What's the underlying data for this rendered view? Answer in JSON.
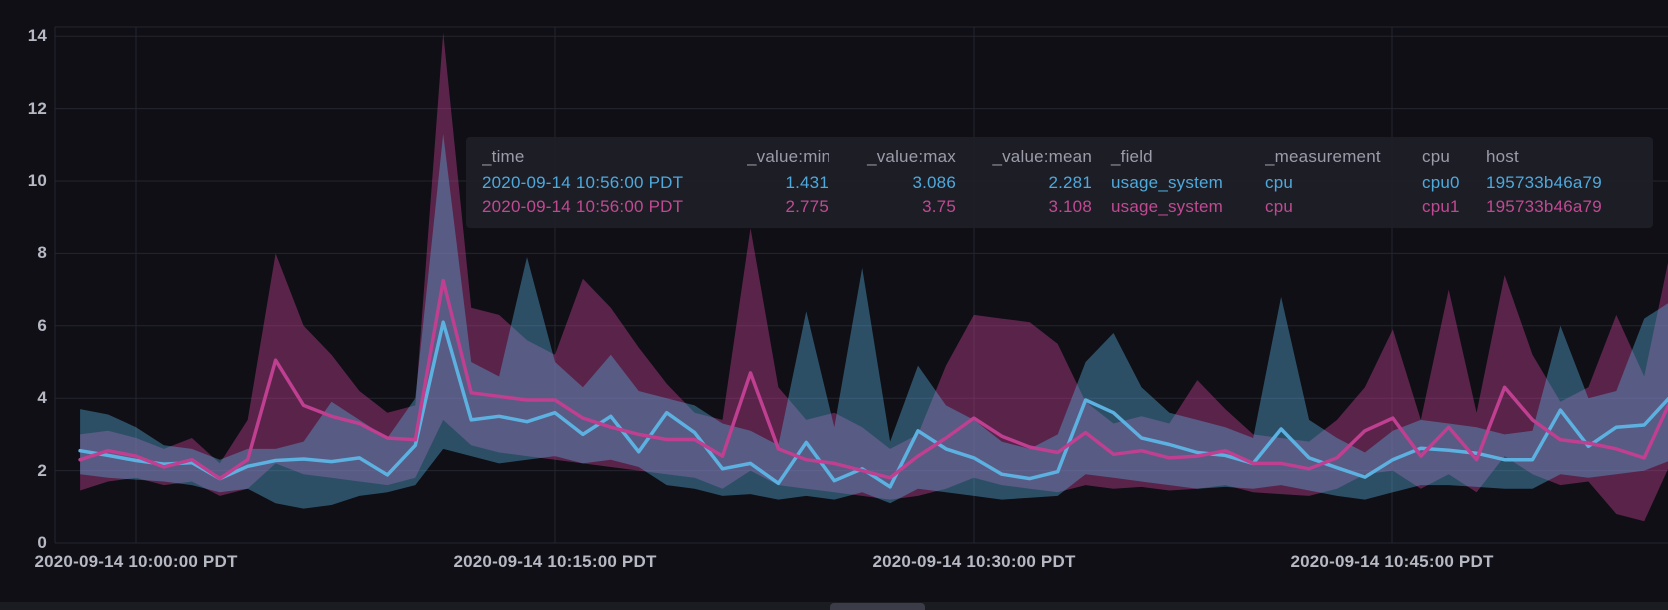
{
  "tooltip": {
    "columns": [
      "_time",
      "_value:min",
      "_value:max",
      "_value:mean",
      "_field",
      "_measurement",
      "cpu",
      "host"
    ],
    "rows": [
      {
        "series": "cpu0",
        "color": "#4EA9DC",
        "cells": [
          "2020-09-14 10:56:00 PDT",
          "1.431",
          "3.086",
          "2.281",
          "usage_system",
          "cpu",
          "cpu0",
          "195733b46a79"
        ]
      },
      {
        "series": "cpu1",
        "color": "#C04A92",
        "cells": [
          "2020-09-14 10:56:00 PDT",
          "2.775",
          "3.75",
          "3.108",
          "usage_system",
          "cpu",
          "cpu1",
          "195733b46a79"
        ]
      }
    ]
  },
  "chart_data": {
    "type": "line",
    "title": "",
    "xlabel": "",
    "ylabel": "",
    "description": "CPU usage_system per-minute min/mean/max bands for two CPUs",
    "grid": true,
    "legend_position": "tooltip",
    "ylim": [
      0,
      14.3
    ],
    "y_ticks": [
      0,
      2,
      4,
      6,
      8,
      10,
      12,
      14
    ],
    "x_tick_labels": [
      "2020-09-14 10:00:00 PDT",
      "2020-09-14 10:15:00 PDT",
      "2020-09-14 10:30:00 PDT",
      "2020-09-14 10:45:00 PDT"
    ],
    "x_minutes": [
      "09:58",
      "09:59",
      "10:00",
      "10:01",
      "10:02",
      "10:03",
      "10:04",
      "10:05",
      "10:06",
      "10:07",
      "10:08",
      "10:09",
      "10:10",
      "10:11",
      "10:12",
      "10:13",
      "10:14",
      "10:15",
      "10:16",
      "10:17",
      "10:18",
      "10:19",
      "10:20",
      "10:21",
      "10:22",
      "10:23",
      "10:24",
      "10:25",
      "10:26",
      "10:27",
      "10:28",
      "10:29",
      "10:30",
      "10:31",
      "10:32",
      "10:33",
      "10:34",
      "10:35",
      "10:36",
      "10:37",
      "10:38",
      "10:39",
      "10:40",
      "10:41",
      "10:42",
      "10:43",
      "10:44",
      "10:45",
      "10:46",
      "10:47",
      "10:48",
      "10:49",
      "10:50",
      "10:51",
      "10:52",
      "10:53",
      "10:54",
      "10:55"
    ],
    "series": [
      {
        "name": "cpu0",
        "measurement": "cpu",
        "field": "usage_system",
        "host": "195733b46a79",
        "line_color": "#5CB1E0",
        "band_color": "rgba(85,170,215,0.42)",
        "mean": [
          2.55,
          2.42,
          2.28,
          2.18,
          2.22,
          1.78,
          2.12,
          2.28,
          2.32,
          2.25,
          2.35,
          1.88,
          2.7,
          6.1,
          3.4,
          3.5,
          3.35,
          3.6,
          3.0,
          3.5,
          2.52,
          3.6,
          3.05,
          2.05,
          2.2,
          1.65,
          2.78,
          1.72,
          2.05,
          1.55,
          3.1,
          2.6,
          2.35,
          1.9,
          1.78,
          1.97,
          3.95,
          3.6,
          2.9,
          2.72,
          2.5,
          2.42,
          2.2,
          3.15,
          2.35,
          2.08,
          1.82,
          2.3,
          2.62,
          2.56,
          2.48,
          2.3,
          2.3,
          3.67,
          2.67,
          3.2,
          3.26,
          4.1
        ],
        "min": [
          1.9,
          1.8,
          1.75,
          1.7,
          1.6,
          1.4,
          1.5,
          1.1,
          0.95,
          1.05,
          1.3,
          1.4,
          1.6,
          2.6,
          2.4,
          2.2,
          2.3,
          2.4,
          2.2,
          2.3,
          2.1,
          1.6,
          1.5,
          1.3,
          1.35,
          1.2,
          1.3,
          1.2,
          1.4,
          1.1,
          1.5,
          1.4,
          1.3,
          1.2,
          1.25,
          1.3,
          1.9,
          1.8,
          1.7,
          1.6,
          1.5,
          1.55,
          1.5,
          1.6,
          1.45,
          1.3,
          1.2,
          1.4,
          1.6,
          1.6,
          1.55,
          1.5,
          1.5,
          1.9,
          1.8,
          1.9,
          2.0,
          2.3
        ],
        "max": [
          3.7,
          3.55,
          3.2,
          2.7,
          2.6,
          2.3,
          2.6,
          2.6,
          2.8,
          3.9,
          3.4,
          2.9,
          4.0,
          11.3,
          5.0,
          4.6,
          7.9,
          5.0,
          4.3,
          5.2,
          4.2,
          4.0,
          3.8,
          3.3,
          3.1,
          2.7,
          6.4,
          3.2,
          7.6,
          2.8,
          4.9,
          3.8,
          3.4,
          2.8,
          2.6,
          3.0,
          5.0,
          5.8,
          4.3,
          3.6,
          3.4,
          3.2,
          2.9,
          6.8,
          3.4,
          2.9,
          2.5,
          3.1,
          3.4,
          3.3,
          3.2,
          3.0,
          3.1,
          6.0,
          4.0,
          4.2,
          6.2,
          6.7
        ]
      },
      {
        "name": "cpu1",
        "measurement": "cpu",
        "field": "usage_system",
        "host": "195733b46a79",
        "line_color": "#BF3F90",
        "band_color": "rgba(191,63,144,0.43)",
        "mean": [
          2.3,
          2.55,
          2.4,
          2.1,
          2.3,
          1.78,
          2.3,
          5.05,
          3.8,
          3.5,
          3.3,
          2.9,
          2.85,
          7.25,
          4.15,
          4.05,
          3.95,
          3.95,
          3.45,
          3.2,
          3.0,
          2.86,
          2.86,
          2.4,
          4.7,
          2.6,
          2.3,
          2.2,
          2.0,
          1.8,
          2.4,
          2.9,
          3.45,
          2.95,
          2.65,
          2.5,
          3.05,
          2.45,
          2.55,
          2.35,
          2.4,
          2.55,
          2.2,
          2.2,
          2.05,
          2.35,
          3.1,
          3.45,
          2.4,
          3.2,
          2.3,
          4.3,
          3.4,
          2.85,
          2.76,
          2.6,
          2.35,
          4.03
        ],
        "min": [
          1.45,
          1.7,
          1.8,
          1.6,
          1.7,
          1.3,
          1.5,
          2.2,
          1.9,
          1.8,
          1.7,
          1.6,
          1.8,
          3.4,
          2.7,
          2.5,
          2.4,
          2.3,
          2.2,
          2.1,
          2.0,
          1.9,
          1.8,
          1.5,
          2.0,
          1.6,
          1.5,
          1.4,
          1.3,
          1.2,
          1.3,
          1.5,
          1.8,
          1.6,
          1.5,
          1.4,
          1.6,
          1.5,
          1.55,
          1.45,
          1.5,
          1.6,
          1.4,
          1.35,
          1.3,
          1.5,
          1.9,
          2.0,
          1.5,
          1.9,
          1.4,
          2.4,
          1.9,
          1.6,
          1.7,
          0.8,
          0.6,
          2.3
        ],
        "max": [
          3.0,
          3.1,
          2.9,
          2.6,
          2.9,
          2.2,
          3.4,
          8.0,
          6.0,
          5.2,
          4.2,
          3.6,
          3.8,
          14.1,
          6.5,
          6.3,
          5.6,
          5.2,
          7.3,
          6.5,
          5.4,
          4.4,
          3.6,
          3.4,
          8.7,
          4.3,
          3.4,
          3.6,
          3.2,
          2.6,
          3.0,
          4.9,
          6.3,
          6.2,
          6.1,
          5.5,
          3.9,
          3.3,
          3.5,
          3.3,
          4.5,
          3.7,
          3.0,
          2.9,
          2.8,
          3.4,
          4.3,
          5.9,
          3.4,
          7.0,
          3.6,
          7.4,
          5.2,
          3.9,
          4.3,
          6.3,
          4.6,
          8.3
        ]
      }
    ],
    "colors": {
      "background": "#0f0f15",
      "gridline": "#25252f",
      "axis_text": "#b6b8c3",
      "tooltip_background": "#1e1e27"
    }
  }
}
